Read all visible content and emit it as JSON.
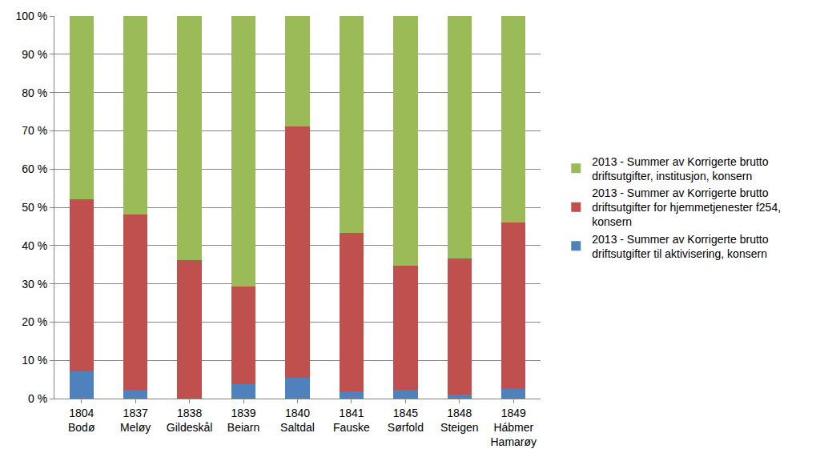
{
  "chart_data": {
    "type": "bar",
    "stacked": true,
    "categories": [
      "1804 Bodø",
      "1837 Meløy",
      "1838 Gildeskål",
      "1839 Beiarn",
      "1840 Saltdal",
      "1841 Fauske",
      "1845 Sørfold",
      "1848 Steigen",
      "1849 Hábmer Hamarøy"
    ],
    "series": [
      {
        "name": "2013 - Summer av Korrigerte brutto driftsutgifter til aktivisering, konsern",
        "color": "#4f81bd",
        "values": [
          7.2,
          2.2,
          0,
          3.7,
          5.5,
          1.8,
          2.3,
          1.0,
          2.5
        ]
      },
      {
        "name": "2013 - Summer av Korrigerte brutto driftsutgifter for hjemmetjenester f254, konsern",
        "color": "#c0504d",
        "values": [
          44.8,
          46.0,
          36.2,
          25.6,
          65.7,
          41.5,
          32.4,
          35.7,
          43.5
        ]
      },
      {
        "name": "2013 - Summer av Korrigerte brutto driftsutgifter, institusjon, konsern",
        "color": "#9bbb59",
        "values": [
          48.0,
          51.8,
          63.8,
          70.7,
          28.8,
          56.7,
          65.3,
          63.3,
          54.0
        ]
      }
    ],
    "ylim": [
      0,
      100
    ],
    "yticks": [
      {
        "value": 0,
        "label": "0 %"
      },
      {
        "value": 10,
        "label": "10 %"
      },
      {
        "value": 20,
        "label": "20 %"
      },
      {
        "value": 30,
        "label": "30 %"
      },
      {
        "value": 40,
        "label": "40 %"
      },
      {
        "value": 50,
        "label": "50 %"
      },
      {
        "value": 60,
        "label": "60 %"
      },
      {
        "value": 70,
        "label": "70 %"
      },
      {
        "value": 80,
        "label": "80 %"
      },
      {
        "value": 90,
        "label": "90 %"
      },
      {
        "value": 100,
        "label": "100 %"
      }
    ],
    "grid": true,
    "legend": "right"
  }
}
